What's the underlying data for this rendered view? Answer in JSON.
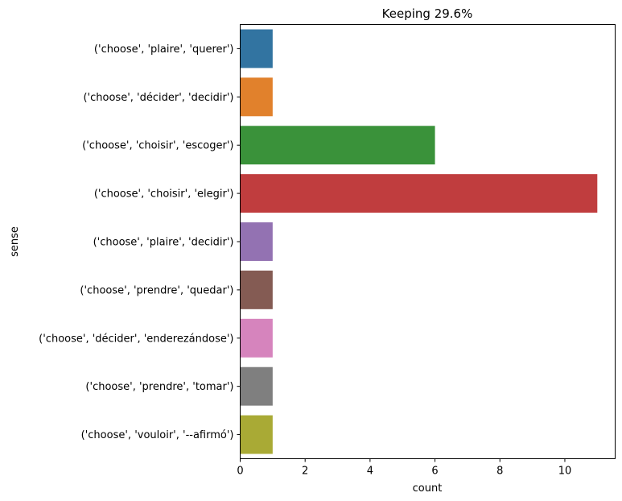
{
  "chart_data": {
    "type": "bar",
    "orientation": "horizontal",
    "title": "Keeping 29.6%",
    "xlabel": "count",
    "ylabel": "sense",
    "xlim": [
      0,
      11.55
    ],
    "xticks": [
      0,
      2,
      4,
      6,
      8,
      10
    ],
    "grid": false,
    "legend": "none",
    "categories": [
      "('choose', 'plaire', 'querer')",
      "('choose', 'décider', 'decidir')",
      "('choose', 'choisir', 'escoger')",
      "('choose', 'choisir', 'elegir')",
      "('choose', 'plaire', 'decidir')",
      "('choose', 'prendre', 'quedar')",
      "('choose', 'décider', 'enderezándose')",
      "('choose', 'prendre', 'tomar')",
      "('choose', 'vouloir', '--afirmó')"
    ],
    "values": [
      1,
      1,
      6,
      11,
      1,
      1,
      1,
      1,
      1
    ],
    "colors": [
      "#3274a1",
      "#e1812c",
      "#3a923a",
      "#c03d3e",
      "#9372b2",
      "#845b53",
      "#d684bd",
      "#7f7f7f",
      "#a9aa35"
    ]
  }
}
